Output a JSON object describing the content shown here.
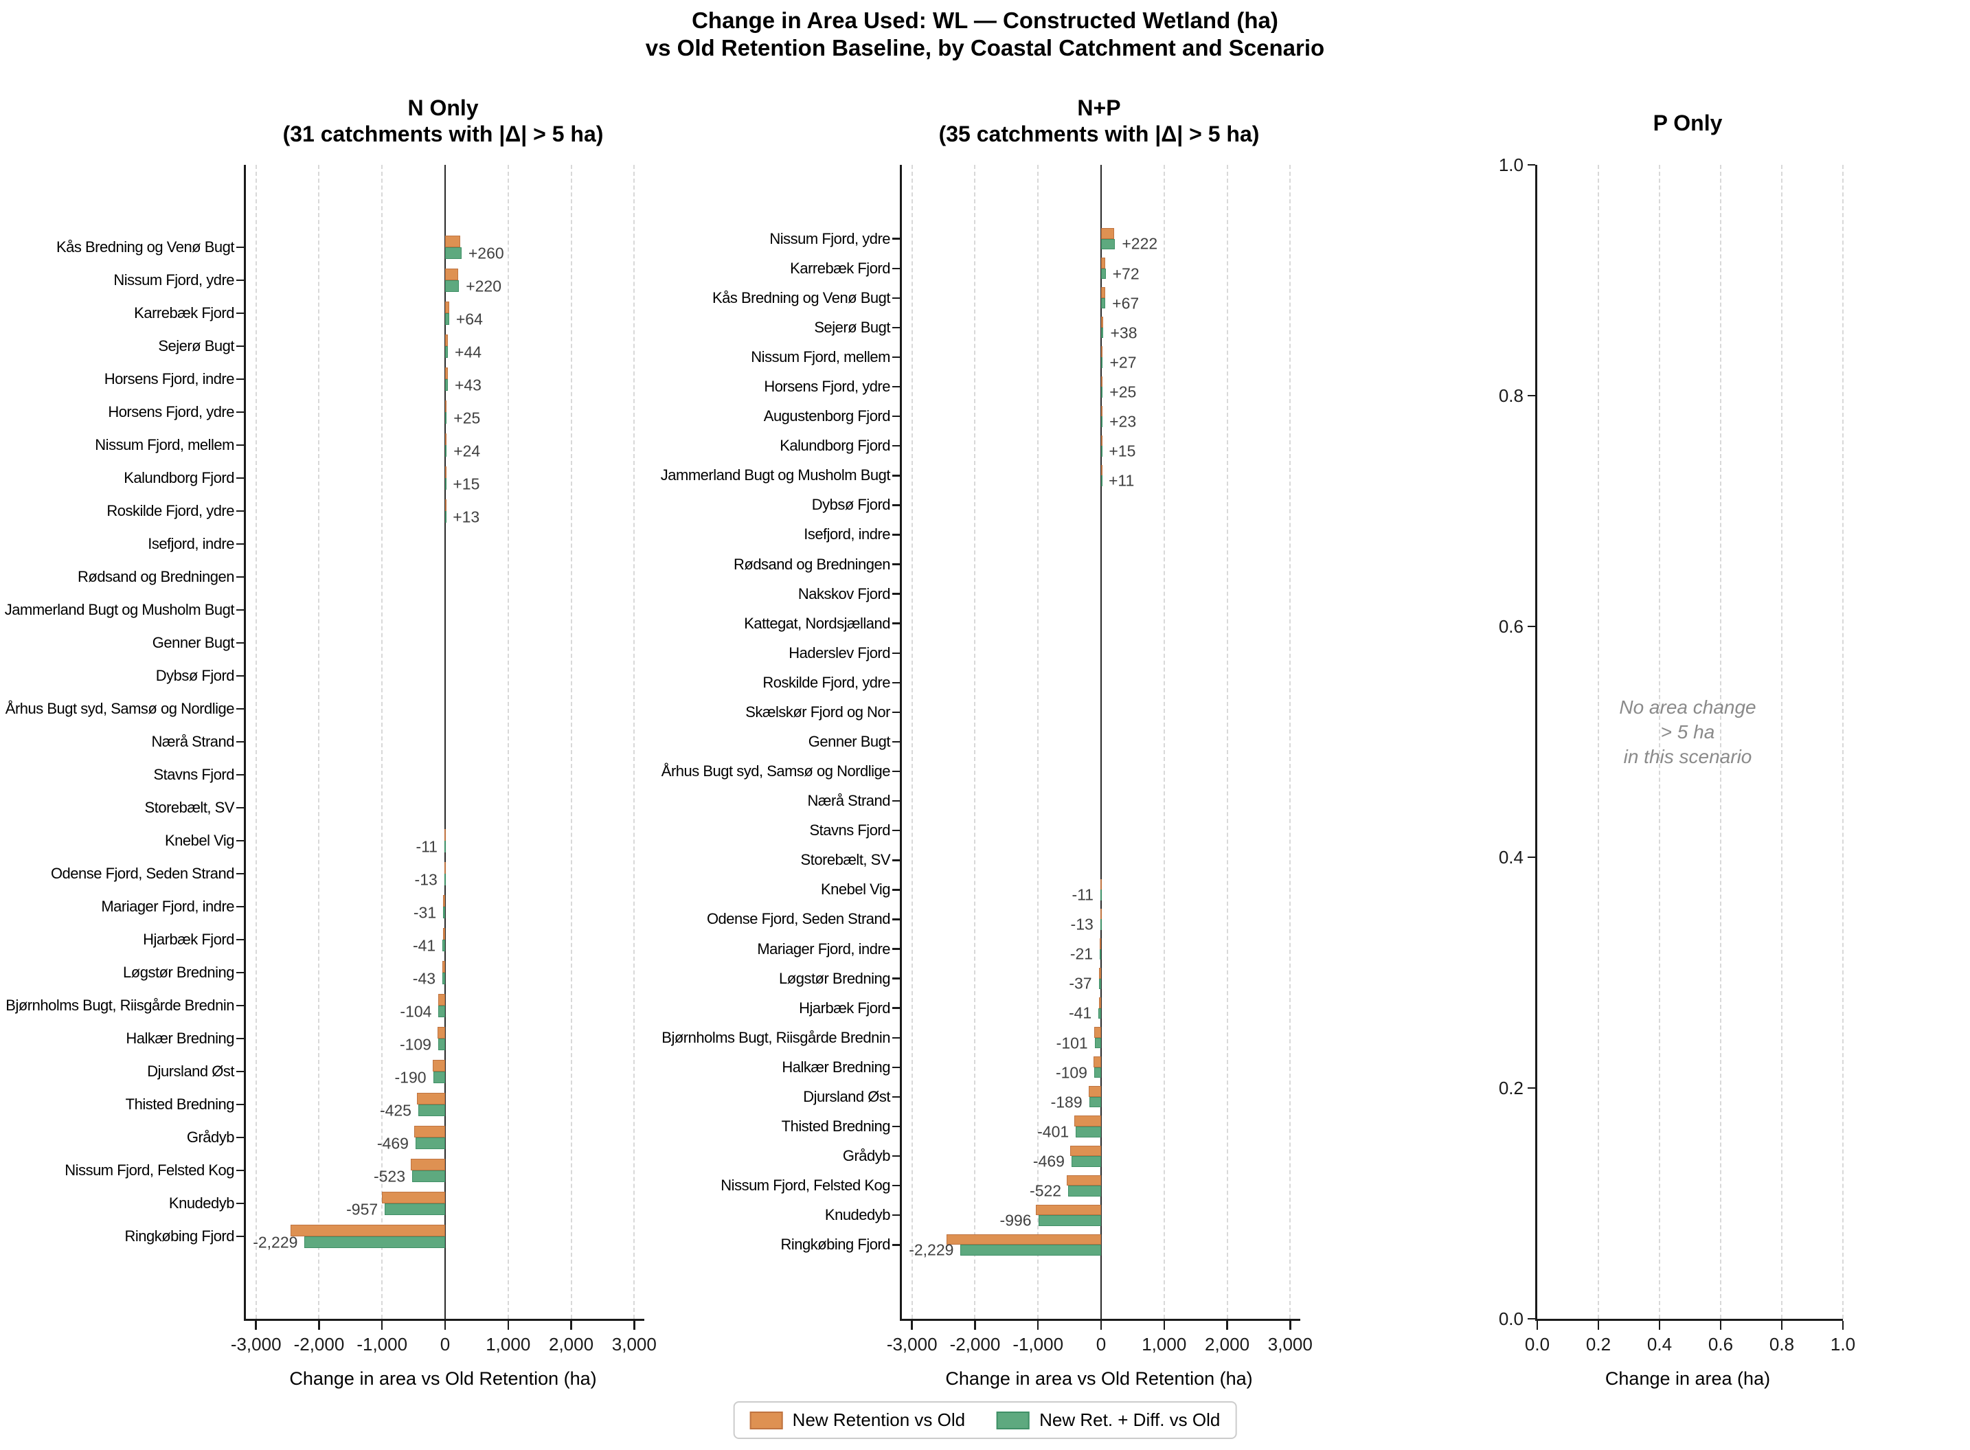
{
  "title": {
    "line1": "Change in Area Used: WL — Constructed Wetland (ha)",
    "line2": "vs Old Retention Baseline, by Coastal Catchment and Scenario"
  },
  "colors": {
    "orange": "#de9152",
    "orange_edge": "#bf7340",
    "green": "#5ea97f",
    "green_edge": "#3f8f66",
    "grid": "#d8d8d8",
    "spine": "#1a1a1a",
    "zero_line": "#2a2a2a",
    "value_label": "#404040",
    "note_text": "#8a8a8a"
  },
  "legend": {
    "items": [
      {
        "label": "New Retention vs Old",
        "color": "#de9152",
        "edge": "#bf7340"
      },
      {
        "label": "New Ret. + Diff. vs Old",
        "color": "#5ea97f",
        "edge": "#3f8f66"
      }
    ]
  },
  "chart_data": [
    {
      "type": "bar",
      "orientation": "horizontal",
      "title": "N Only",
      "subtitle": "(31 catchments with |Δ| > 5 ha)",
      "xlabel": "Change in area vs Old Retention (ha)",
      "xlim": [
        -3160,
        3160
      ],
      "xticks": [
        -3000,
        -2000,
        -1000,
        0,
        1000,
        2000,
        3000
      ],
      "xtick_labels": [
        "-3,000",
        "-2,000",
        "-1,000",
        "0",
        "1,000",
        "2,000",
        "3,000"
      ],
      "grid": "vertical-dashed",
      "categories": [
        "Kås Bredning og Venø Bugt",
        "Nissum Fjord, ydre",
        "Karrebæk Fjord",
        "Sejerø Bugt",
        "Horsens Fjord, indre",
        "Horsens Fjord, ydre",
        "Nissum Fjord, mellem",
        "Kalundborg Fjord",
        "Roskilde Fjord, ydre",
        "Isefjord, indre",
        "Rødsand og Bredningen",
        "Jammerland Bugt og Musholm Bugt",
        "Genner Bugt",
        "Dybsø Fjord",
        "Århus Bugt syd, Samsø og Nordlige",
        "Nærå Strand",
        "Stavns Fjord",
        "Storebælt, SV",
        "Knebel Vig",
        "Odense Fjord, Seden Strand",
        "Mariager Fjord, indre",
        "Hjarbæk Fjord",
        "Løgstør Bredning",
        "Bjørnholms Bugt, Riisgårde Brednin",
        "Halkær Bredning",
        "Djursland Øst",
        "Thisted Bredning",
        "Grådyb",
        "Nissum Fjord, Felsted Kog",
        "Knudedyb",
        "Ringkøbing Fjord"
      ],
      "series": [
        {
          "name": "New Retention vs Old",
          "values": [
            240,
            210,
            60,
            42,
            40,
            24,
            22,
            14,
            12,
            0,
            0,
            0,
            0,
            0,
            0,
            0,
            0,
            0,
            -10,
            -12,
            -29,
            -38,
            -40,
            -110,
            -116,
            -200,
            -446,
            -492,
            -548,
            -1000,
            -2450
          ]
        },
        {
          "name": "New Ret. + Diff. vs Old",
          "values": [
            260,
            220,
            64,
            44,
            43,
            25,
            24,
            15,
            13,
            0,
            0,
            0,
            0,
            0,
            0,
            0,
            0,
            0,
            -11,
            -13,
            -31,
            -41,
            -43,
            -104,
            -109,
            -190,
            -425,
            -469,
            -523,
            -957,
            -2229
          ]
        }
      ],
      "labels": [
        "+260",
        "+220",
        "+64",
        "+44",
        "+43",
        "+25",
        "+24",
        "+15",
        "+13",
        "",
        "",
        "",
        "",
        "",
        "",
        "",
        "",
        "",
        "-11",
        "-13",
        "-31",
        "-41",
        "-43",
        "-104",
        "-109",
        "-190",
        "-425",
        "-469",
        "-523",
        "-957",
        "-2,229"
      ]
    },
    {
      "type": "bar",
      "orientation": "horizontal",
      "title": "N+P",
      "subtitle": "(35 catchments with |Δ| > 5 ha)",
      "xlabel": "Change in area vs Old Retention (ha)",
      "xlim": [
        -3160,
        3160
      ],
      "xticks": [
        -3000,
        -2000,
        -1000,
        0,
        1000,
        2000,
        3000
      ],
      "xtick_labels": [
        "-3,000",
        "-2,000",
        "-1,000",
        "0",
        "1,000",
        "2,000",
        "3,000"
      ],
      "grid": "vertical-dashed",
      "categories": [
        "Nissum Fjord, ydre",
        "Karrebæk Fjord",
        "Kås Bredning og Venø Bugt",
        "Sejerø Bugt",
        "Nissum Fjord, mellem",
        "Horsens Fjord, ydre",
        "Augustenborg Fjord",
        "Kalundborg Fjord",
        "Jammerland Bugt og Musholm Bugt",
        "Dybsø Fjord",
        "Isefjord, indre",
        "Rødsand og Bredningen",
        "Nakskov Fjord",
        "Kattegat, Nordsjælland",
        "Haderslev Fjord",
        "Roskilde Fjord, ydre",
        "Skælskør Fjord og Nor",
        "Genner Bugt",
        "Århus Bugt syd, Samsø og Nordlige",
        "Nærå Strand",
        "Stavns Fjord",
        "Storebælt, SV",
        "Knebel Vig",
        "Odense Fjord, Seden Strand",
        "Mariager Fjord, indre",
        "Løgstør Bredning",
        "Hjarbæk Fjord",
        "Bjørnholms Bugt, Riisgårde Brednin",
        "Halkær Bredning",
        "Djursland Øst",
        "Thisted Bredning",
        "Grådyb",
        "Nissum Fjord, Felsted Kog",
        "Knudedyb",
        "Ringkøbing Fjord"
      ],
      "series": [
        {
          "name": "New Retention vs Old",
          "values": [
            210,
            68,
            62,
            36,
            25,
            24,
            22,
            14,
            10,
            0,
            0,
            0,
            0,
            0,
            0,
            0,
            0,
            0,
            0,
            0,
            0,
            0,
            -10,
            -12,
            -20,
            -34,
            -38,
            -107,
            -116,
            -198,
            -421,
            -492,
            -546,
            -1040,
            -2450
          ]
        },
        {
          "name": "New Ret. + Diff. vs Old",
          "values": [
            222,
            72,
            67,
            38,
            27,
            25,
            23,
            15,
            11,
            0,
            0,
            0,
            0,
            0,
            0,
            0,
            0,
            0,
            0,
            0,
            0,
            0,
            -11,
            -13,
            -21,
            -37,
            -41,
            -101,
            -109,
            -189,
            -401,
            -469,
            -522,
            -996,
            -2229
          ]
        }
      ],
      "labels": [
        "+222",
        "+72",
        "+67",
        "+38",
        "+27",
        "+25",
        "+23",
        "+15",
        "+11",
        "",
        "",
        "",
        "",
        "",
        "",
        "",
        "",
        "",
        "",
        "",
        "",
        "",
        "-11",
        "-13",
        "-21",
        "-37",
        "-41",
        "-101",
        "-109",
        "-189",
        "-401",
        "-469",
        "-522",
        "-996",
        "-2,229"
      ]
    },
    {
      "type": "empty",
      "title": "P Only",
      "subtitle": "",
      "xlabel": "Change in area (ha)",
      "xlim": [
        0,
        1
      ],
      "ylim": [
        0,
        1
      ],
      "xticks": [
        0,
        0.2,
        0.4,
        0.6,
        0.8,
        1.0
      ],
      "xtick_labels": [
        "0.0",
        "0.2",
        "0.4",
        "0.6",
        "0.8",
        "1.0"
      ],
      "yticks": [
        1.0,
        0.8,
        0.6,
        0.4,
        0.2,
        0.0
      ],
      "ytick_labels": [
        "1.0",
        "0.8",
        "0.6",
        "0.4",
        "0.2",
        "0.0"
      ],
      "grid": "vertical-dashed",
      "note_lines": [
        "No area change",
        "> 5 ha",
        "in this scenario"
      ]
    }
  ]
}
